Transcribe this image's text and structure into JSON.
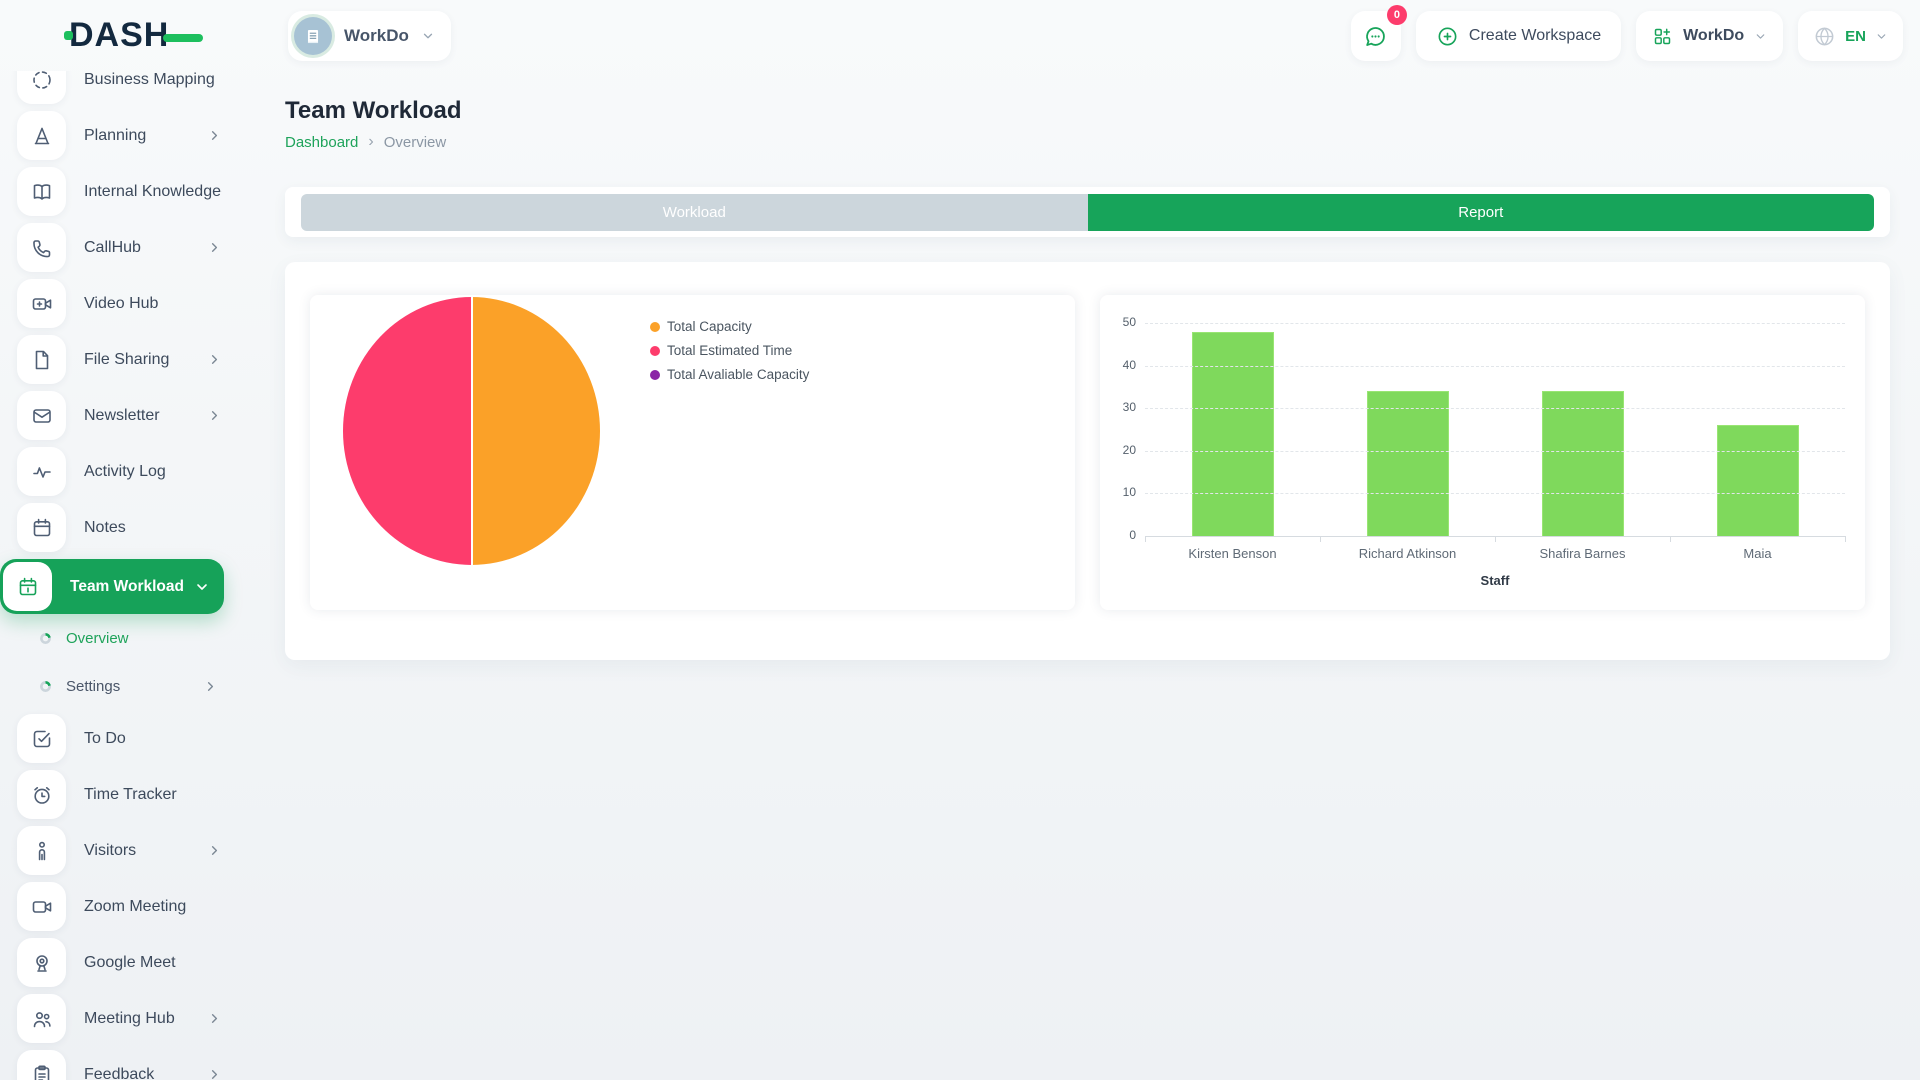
{
  "header": {
    "logo_text": "DASH",
    "workspace_selector": {
      "label": "WorkDo",
      "icon": "building-icon"
    },
    "messages_badge": "0",
    "create_workspace_label": "Create Workspace",
    "workdo_menu_label": "WorkDo",
    "language": "EN"
  },
  "sidebar": {
    "items": [
      {
        "label": "Business Mapping",
        "icon": "business-mapping-icon",
        "chevron": false
      },
      {
        "label": "Planning",
        "icon": "planning-icon",
        "chevron": true
      },
      {
        "label": "Internal Knowledge",
        "icon": "internal-knowledge-icon",
        "chevron": true
      },
      {
        "label": "CallHub",
        "icon": "callhub-icon",
        "chevron": true
      },
      {
        "label": "Video Hub",
        "icon": "video-hub-icon",
        "chevron": false
      },
      {
        "label": "File Sharing",
        "icon": "file-sharing-icon",
        "chevron": true
      },
      {
        "label": "Newsletter",
        "icon": "newsletter-icon",
        "chevron": true
      },
      {
        "label": "Activity Log",
        "icon": "activity-log-icon",
        "chevron": false
      },
      {
        "label": "Notes",
        "icon": "notes-icon",
        "chevron": false
      },
      {
        "label": "Team Workload",
        "icon": "team-workload-icon",
        "chevron": "down",
        "active": true
      },
      {
        "label": "Overview",
        "submenu": true,
        "active": true,
        "chevron": false
      },
      {
        "label": "Settings",
        "submenu": true,
        "chevron": true
      },
      {
        "label": "To Do",
        "icon": "todo-icon",
        "chevron": false
      },
      {
        "label": "Time Tracker",
        "icon": "time-tracker-icon",
        "chevron": false
      },
      {
        "label": "Visitors",
        "icon": "visitors-icon",
        "chevron": true
      },
      {
        "label": "Zoom Meeting",
        "icon": "zoom-meeting-icon",
        "chevron": false
      },
      {
        "label": "Google Meet",
        "icon": "google-meet-icon",
        "chevron": false
      },
      {
        "label": "Meeting Hub",
        "icon": "meeting-hub-icon",
        "chevron": true
      },
      {
        "label": "Feedback",
        "icon": "feedback-icon",
        "chevron": true
      }
    ]
  },
  "page": {
    "title": "Team Workload",
    "breadcrumb": [
      "Dashboard",
      "Overview"
    ]
  },
  "tabs": [
    {
      "label": "Workload",
      "active": false
    },
    {
      "label": "Report",
      "active": true
    }
  ],
  "chart_data": [
    {
      "type": "pie",
      "title": "",
      "labels": [
        "Total Capacity",
        "Total Estimated Time",
        "Total Avaliable Capacity"
      ],
      "values": [
        50,
        50,
        0
      ],
      "units": "percent",
      "colors": [
        "#FBA128",
        "#FD3C6C",
        "#8B23A6"
      ],
      "legend_position": "right"
    },
    {
      "type": "bar",
      "title": "",
      "categories": [
        "Kirsten Benson",
        "Richard Atkinson",
        "Shafira Barnes",
        "Maia"
      ],
      "values": [
        48,
        34,
        34,
        26
      ],
      "xlabel": "Staff",
      "ylabel": "",
      "ylim": [
        0,
        50
      ],
      "yticks": [
        0,
        10,
        20,
        30,
        40,
        50
      ],
      "bar_color": "#7FD95C",
      "grid": "horizontal-dashed",
      "legend_position": "none"
    }
  ],
  "colors": {
    "accent_green": "#17A45A",
    "sidebar_active_green": "#16A259",
    "tab_inactive": "#CCD6DC",
    "bar_green": "#7FD95C",
    "pie_orange": "#FBA128",
    "pie_pink": "#FD3C6C",
    "legend_purple": "#8B23A6",
    "badge_pink": "#FD3C6C",
    "logo_navy": "#13293F",
    "logo_green": "#1DBF5E"
  }
}
